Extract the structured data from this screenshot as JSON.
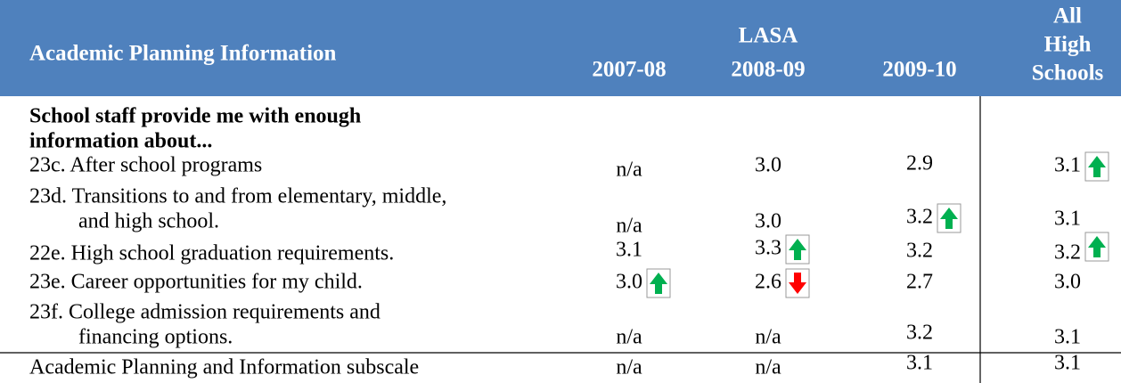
{
  "header": {
    "title": "Academic Planning Information",
    "group": "LASA",
    "columns": [
      "2007-08",
      "2008-09",
      "2009-10"
    ],
    "all_schools": [
      "All",
      "High",
      "Schools"
    ]
  },
  "section": [
    "School staff provide me with enough",
    "information about..."
  ],
  "rows": [
    {
      "label": [
        "23c. After school programs"
      ],
      "cells": [
        "n/a",
        "3.0",
        "2.9",
        "3.1"
      ],
      "arrows": [
        null,
        null,
        null,
        "up"
      ]
    },
    {
      "label": [
        "23d. Transitions to and from elementary, middle,",
        "and high school."
      ],
      "cells": [
        "n/a",
        "3.0",
        "3.2",
        "3.1"
      ],
      "arrows": [
        null,
        null,
        "up",
        null
      ]
    },
    {
      "label": [
        "22e. High school graduation requirements."
      ],
      "cells": [
        "3.1",
        "3.3",
        "3.2",
        "3.2"
      ],
      "arrows": [
        null,
        "up",
        null,
        "up"
      ]
    },
    {
      "label": [
        "23e. Career opportunities for my child."
      ],
      "cells": [
        "3.0",
        "2.6",
        "2.7",
        "3.0"
      ],
      "arrows": [
        "up",
        "down",
        null,
        null
      ]
    },
    {
      "label": [
        "23f. College admission requirements and",
        "financing options."
      ],
      "cells": [
        "n/a",
        "n/a",
        "3.2",
        "3.1"
      ],
      "arrows": [
        null,
        null,
        null,
        null
      ]
    },
    {
      "label": [
        "Academic Planning and Information subscale"
      ],
      "cells": [
        "n/a",
        "n/a",
        "3.1",
        "3.1"
      ],
      "arrows": [
        null,
        null,
        null,
        null
      ]
    }
  ]
}
